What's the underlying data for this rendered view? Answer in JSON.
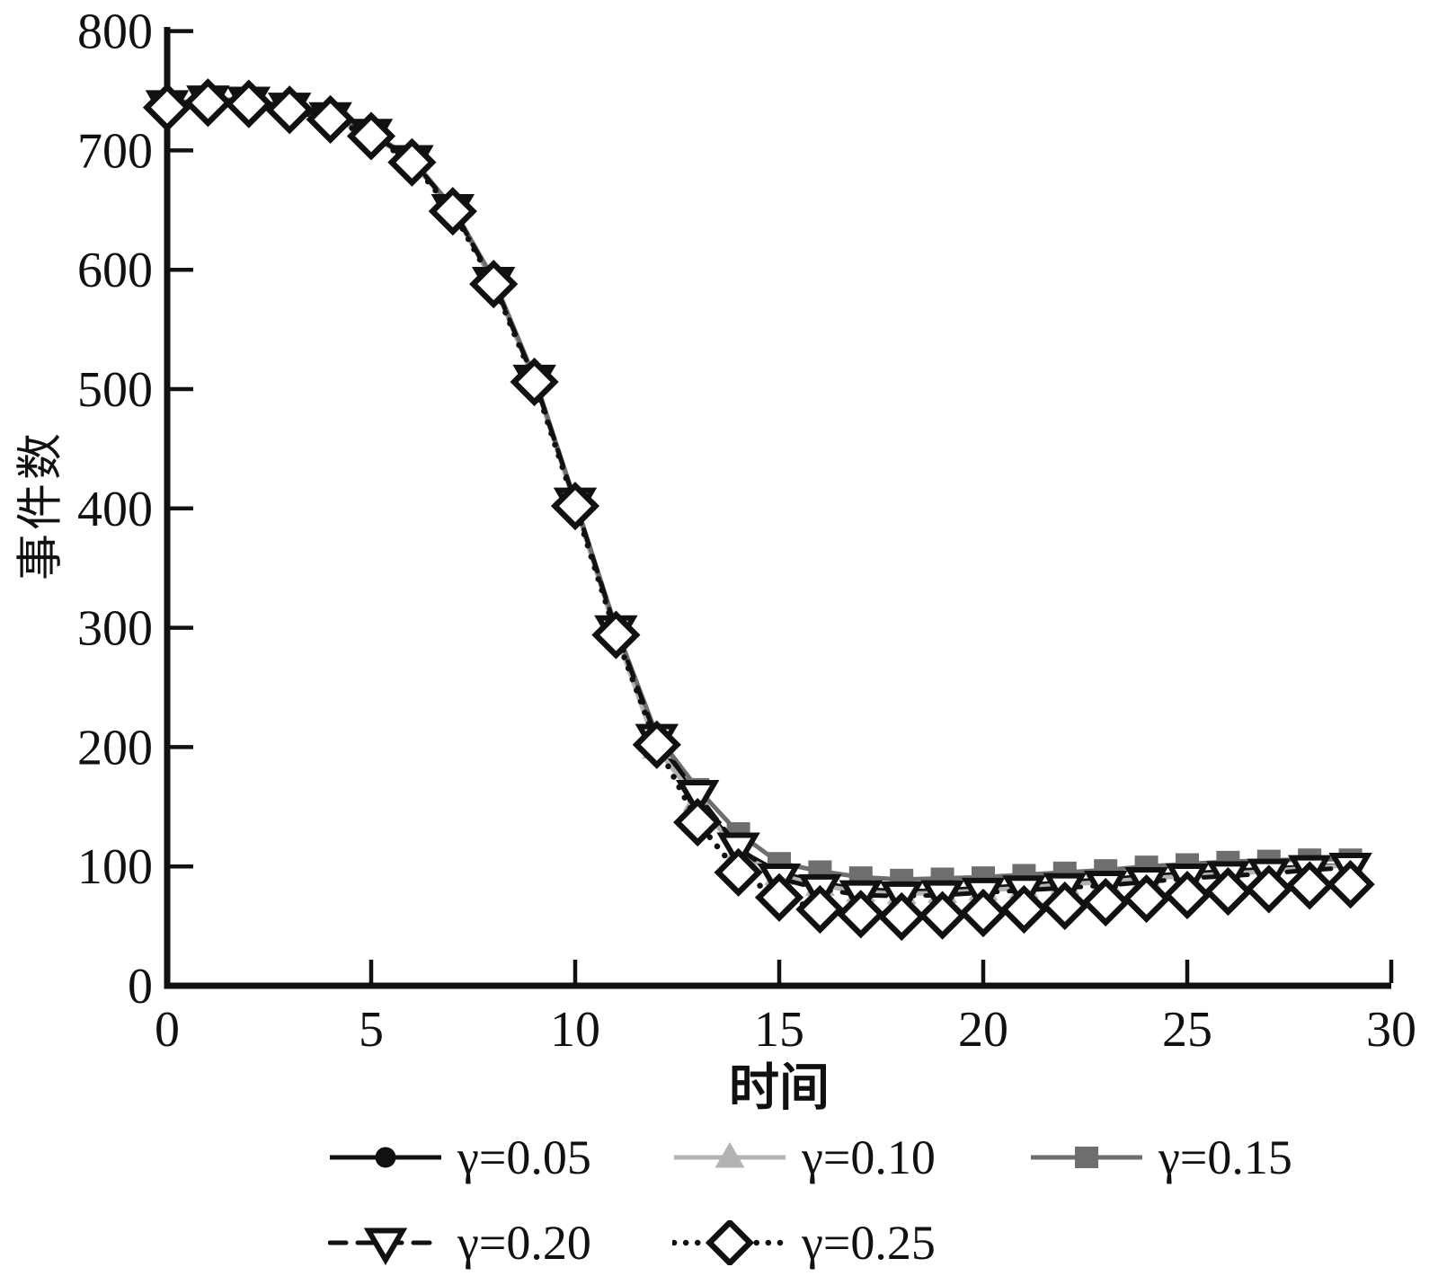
{
  "chart_data": {
    "type": "line",
    "title": "",
    "xlabel": "时间",
    "ylabel": "事件数",
    "xlim": [
      0,
      30
    ],
    "ylim": [
      0,
      800
    ],
    "xticks": [
      "0",
      "5",
      "10",
      "15",
      "20",
      "25",
      "30"
    ],
    "yticks": [
      "0",
      "100",
      "200",
      "300",
      "400",
      "500",
      "600",
      "700",
      "800"
    ],
    "grid": false,
    "legend_position": "below-chart",
    "axis_color": "#111111",
    "x": [
      0,
      1,
      2,
      3,
      4,
      5,
      6,
      7,
      8,
      9,
      10,
      11,
      12,
      13,
      14,
      15,
      16,
      17,
      18,
      19,
      20,
      21,
      22,
      23,
      24,
      25,
      26,
      27,
      28,
      29
    ],
    "series": [
      {
        "name": "γ=0.05",
        "color": "#111111",
        "line_style": "solid",
        "marker": "circle",
        "marker_fill": "filled",
        "values": [
          738,
          742,
          741,
          736,
          728,
          714,
          692,
          651,
          590,
          508,
          404,
          297,
          205,
          157,
          114,
          95,
          86,
          81,
          79,
          80,
          82,
          84,
          87,
          89,
          92,
          94,
          96,
          98,
          100,
          101
        ]
      },
      {
        "name": "γ=0.10",
        "color": "#b3b3b3",
        "line_style": "solid",
        "marker": "triangle-up",
        "marker_fill": "filled",
        "values": [
          737,
          741,
          740,
          735,
          727,
          713,
          691,
          650,
          589,
          507,
          403,
          295,
          199,
          155,
          111,
          93,
          84,
          79,
          77,
          78,
          80,
          82,
          85,
          87,
          90,
          92,
          94,
          96,
          99,
          101
        ]
      },
      {
        "name": "γ=0.15",
        "color": "#6e6e6e",
        "line_style": "solid",
        "marker": "square",
        "marker_fill": "filled",
        "values": [
          739,
          743,
          742,
          737,
          729,
          715,
          693,
          652,
          592,
          510,
          406,
          300,
          210,
          165,
          128,
          103,
          96,
          91,
          89,
          90,
          91,
          93,
          95,
          97,
          100,
          102,
          104,
          105,
          106,
          106
        ]
      },
      {
        "name": "γ=0.20",
        "color": "#111111",
        "line_style": "dashed",
        "marker": "triangle-down",
        "marker_fill": "open",
        "values": [
          738,
          742,
          741,
          736,
          728,
          714,
          692,
          651,
          590,
          508,
          405,
          298,
          207,
          160,
          116,
          90,
          81,
          76,
          75,
          76,
          78,
          80,
          82,
          84,
          87,
          90,
          92,
          94,
          97,
          99
        ]
      },
      {
        "name": "γ=0.25",
        "color": "#111111",
        "line_style": "dotted",
        "marker": "diamond",
        "marker_fill": "open",
        "values": [
          736,
          740,
          739,
          734,
          726,
          712,
          690,
          649,
          588,
          506,
          402,
          294,
          202,
          137,
          95,
          74,
          64,
          60,
          58,
          59,
          61,
          64,
          67,
          70,
          73,
          76,
          79,
          81,
          84,
          85
        ]
      }
    ]
  }
}
